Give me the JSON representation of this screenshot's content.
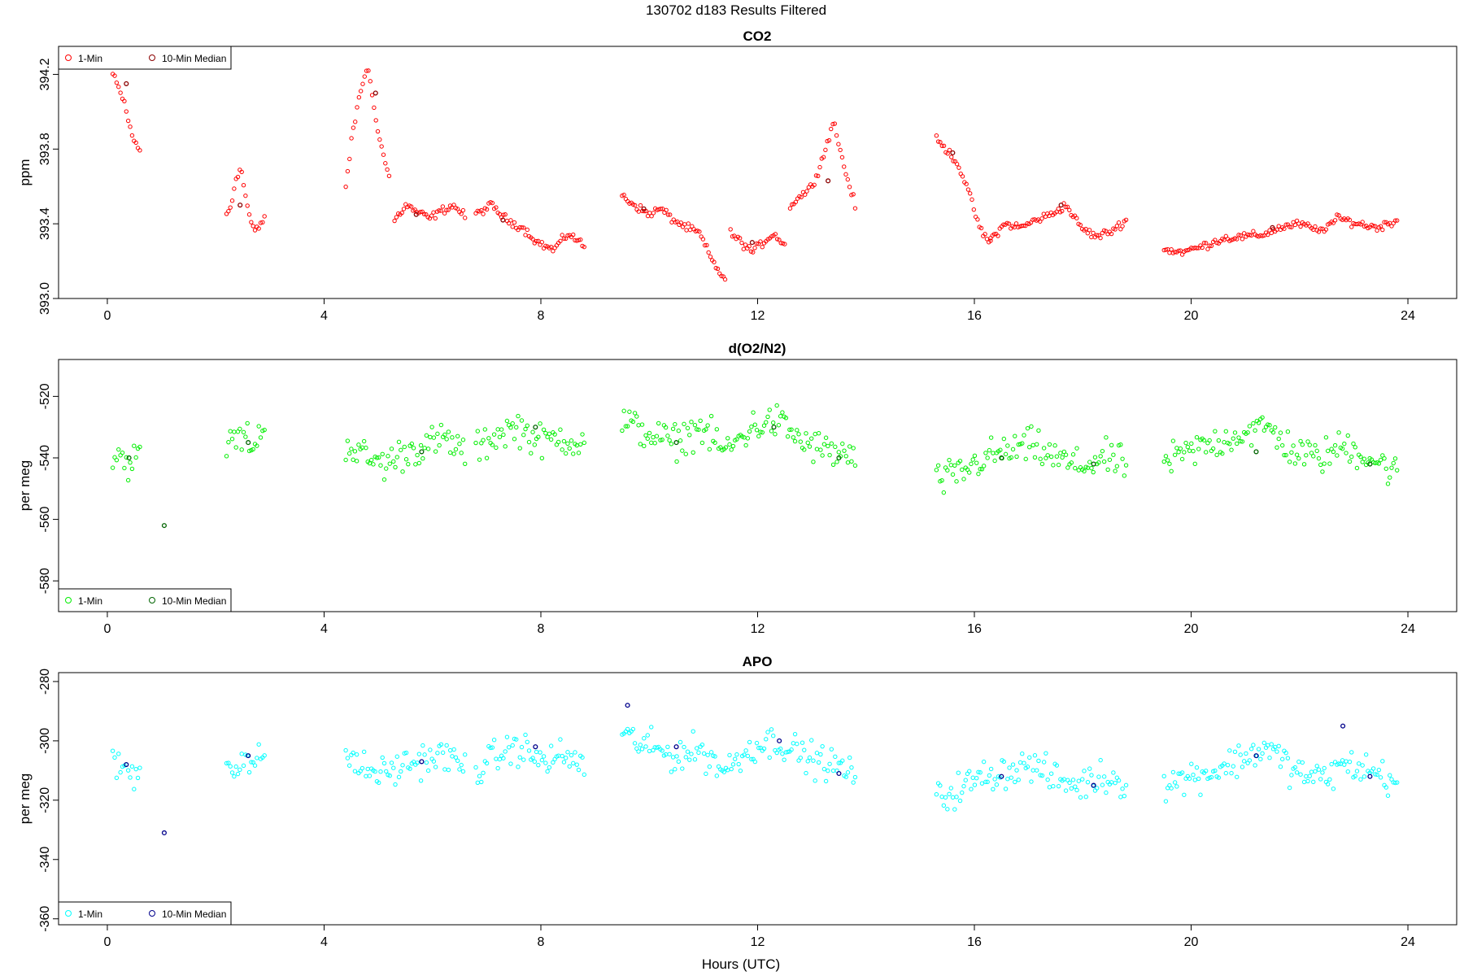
{
  "figure": {
    "title": "130702    d183    Results Filtered",
    "xlabel": "Hours (UTC)"
  },
  "legend": {
    "one_min": "1-Min",
    "ten_min": "10-Min Median"
  },
  "chart_data": [
    {
      "type": "scatter",
      "id": "co2",
      "title": "CO2",
      "xlabel": "",
      "ylabel": "ppm",
      "xlim": [
        -0.9,
        24.9
      ],
      "ylim": [
        393.0,
        394.35
      ],
      "xticks": [
        0,
        4,
        8,
        12,
        16,
        20,
        24
      ],
      "yticks": [
        393.0,
        393.4,
        393.8,
        394.2
      ],
      "ytick_labels": [
        "393.0",
        "393.4",
        "393.8",
        "394.2"
      ],
      "legend_position": "top-left",
      "grid": false,
      "color_1min": "#ff0000",
      "color_median": "#8b0000",
      "segments": [
        {
          "x0": 0.1,
          "x1": 0.6,
          "y": [
            394.2,
            394.15,
            394.1,
            394.05,
            393.95,
            393.88,
            393.82,
            393.79
          ]
        },
        {
          "x0": 2.2,
          "x1": 2.9,
          "y": [
            393.45,
            393.5,
            393.65,
            393.7,
            393.55,
            393.42,
            393.36,
            393.38,
            393.44
          ]
        },
        {
          "x0": 4.4,
          "x1": 5.2,
          "y": [
            393.6,
            393.9,
            394.1,
            394.25,
            394.0,
            393.8,
            393.65
          ]
        },
        {
          "x0": 5.3,
          "x1": 6.6,
          "y": [
            393.42,
            393.5,
            393.46,
            393.43,
            393.47,
            393.5,
            393.44
          ]
        },
        {
          "x0": 6.8,
          "x1": 8.8,
          "y": [
            393.45,
            393.5,
            393.42,
            393.38,
            393.3,
            393.26,
            393.35,
            393.28
          ]
        },
        {
          "x0": 9.5,
          "x1": 11.4,
          "y": [
            393.55,
            393.5,
            393.45,
            393.48,
            393.42,
            393.38,
            393.35,
            393.2,
            393.1
          ]
        },
        {
          "x0": 11.5,
          "x1": 12.5,
          "y": [
            393.35,
            393.3,
            393.25,
            393.3,
            393.35,
            393.28
          ]
        },
        {
          "x0": 12.6,
          "x1": 13.8,
          "y": [
            393.5,
            393.55,
            393.6,
            393.75,
            393.95,
            393.7,
            393.5
          ]
        },
        {
          "x0": 15.3,
          "x1": 16.3,
          "y": [
            393.85,
            393.8,
            393.75,
            393.65,
            393.5,
            393.35,
            393.3
          ]
        },
        {
          "x0": 16.3,
          "x1": 18.8,
          "y": [
            393.32,
            393.4,
            393.38,
            393.42,
            393.45,
            393.5,
            393.38,
            393.33,
            393.36,
            393.42
          ]
        },
        {
          "x0": 19.5,
          "x1": 23.8,
          "y": [
            393.26,
            393.25,
            393.28,
            393.32,
            393.33,
            393.34,
            393.38,
            393.4,
            393.36,
            393.43,
            393.4,
            393.38,
            393.42
          ]
        }
      ],
      "scatter": 0.03,
      "medians": [
        {
          "x": 0.35,
          "y": 394.15
        },
        {
          "x": 2.45,
          "y": 393.5
        },
        {
          "x": 4.95,
          "y": 394.1
        },
        {
          "x": 5.7,
          "y": 393.45
        },
        {
          "x": 7.3,
          "y": 393.42
        },
        {
          "x": 9.9,
          "y": 393.48
        },
        {
          "x": 11.9,
          "y": 393.3
        },
        {
          "x": 13.3,
          "y": 393.63
        },
        {
          "x": 15.6,
          "y": 393.78
        },
        {
          "x": 17.6,
          "y": 393.5
        },
        {
          "x": 21.5,
          "y": 393.38
        }
      ]
    },
    {
      "type": "scatter",
      "id": "o2n2",
      "title": "d(O2/N2)",
      "xlabel": "",
      "ylabel": "per meg",
      "xlim": [
        -0.9,
        24.9
      ],
      "ylim": [
        -590,
        -508
      ],
      "xticks": [
        0,
        4,
        8,
        12,
        16,
        20,
        24
      ],
      "yticks": [
        -580,
        -560,
        -540,
        -520
      ],
      "ytick_labels": [
        "-580",
        "-560",
        "-540",
        "-520"
      ],
      "legend_position": "bottom-left",
      "grid": false,
      "color_1min": "#00ee00",
      "color_median": "#006400",
      "segments": [
        {
          "x0": 0.1,
          "x1": 0.6,
          "y": [
            -540,
            -538,
            -542,
            -540,
            -541
          ]
        },
        {
          "x0": 2.2,
          "x1": 2.9,
          "y": [
            -535,
            -534,
            -533,
            -536,
            -530
          ]
        },
        {
          "x0": 4.4,
          "x1": 6.6,
          "y": [
            -535,
            -540,
            -542,
            -538,
            -536,
            -534,
            -538
          ]
        },
        {
          "x0": 6.8,
          "x1": 8.8,
          "y": [
            -538,
            -532,
            -530,
            -535,
            -533,
            -536
          ]
        },
        {
          "x0": 9.5,
          "x1": 13.8,
          "y": [
            -528,
            -532,
            -535,
            -530,
            -538,
            -530,
            -528,
            -535,
            -538,
            -540
          ]
        },
        {
          "x0": 15.3,
          "x1": 18.8,
          "y": [
            -548,
            -545,
            -540,
            -538,
            -536,
            -540,
            -543,
            -540,
            -542
          ]
        },
        {
          "x0": 19.5,
          "x1": 23.8,
          "y": [
            -542,
            -538,
            -535,
            -532,
            -530,
            -538,
            -540,
            -536,
            -540,
            -545
          ]
        }
      ],
      "scatter": 8,
      "medians": [
        {
          "x": 0.4,
          "y": -540
        },
        {
          "x": 1.05,
          "y": -562
        },
        {
          "x": 2.6,
          "y": -535
        },
        {
          "x": 5.8,
          "y": -538
        },
        {
          "x": 7.9,
          "y": -530
        },
        {
          "x": 10.5,
          "y": -535
        },
        {
          "x": 12.3,
          "y": -530
        },
        {
          "x": 13.5,
          "y": -540
        },
        {
          "x": 16.5,
          "y": -540
        },
        {
          "x": 18.2,
          "y": -542
        },
        {
          "x": 21.2,
          "y": -538
        },
        {
          "x": 23.3,
          "y": -542
        }
      ]
    },
    {
      "type": "scatter",
      "id": "apo",
      "title": "APO",
      "xlabel": "Hours (UTC)",
      "ylabel": "per meg",
      "xlim": [
        -0.9,
        24.9
      ],
      "ylim": [
        -362,
        -277
      ],
      "xticks": [
        0,
        4,
        8,
        12,
        16,
        20,
        24
      ],
      "yticks": [
        -360,
        -340,
        -320,
        -300,
        -280
      ],
      "ytick_labels": [
        "-360",
        "-340",
        "-320",
        "-300",
        "-280"
      ],
      "legend_position": "bottom-left",
      "grid": false,
      "color_1min": "#00ffff",
      "color_median": "#00008b",
      "segments": [
        {
          "x0": 0.1,
          "x1": 0.6,
          "y": [
            -306,
            -310,
            -308,
            -312,
            -310
          ]
        },
        {
          "x0": 2.2,
          "x1": 2.9,
          "y": [
            -307,
            -308,
            -305,
            -310,
            -302
          ]
        },
        {
          "x0": 4.4,
          "x1": 6.6,
          "y": [
            -305,
            -310,
            -311,
            -308,
            -306,
            -305,
            -309
          ]
        },
        {
          "x0": 6.8,
          "x1": 8.8,
          "y": [
            -310,
            -305,
            -302,
            -307,
            -305,
            -308
          ]
        },
        {
          "x0": 9.5,
          "x1": 13.8,
          "y": [
            -298,
            -302,
            -305,
            -303,
            -310,
            -302,
            -300,
            -305,
            -308,
            -311
          ]
        },
        {
          "x0": 15.3,
          "x1": 18.8,
          "y": [
            -320,
            -316,
            -312,
            -310,
            -308,
            -313,
            -315,
            -312,
            -314
          ]
        },
        {
          "x0": 19.5,
          "x1": 23.8,
          "y": [
            -315,
            -312,
            -310,
            -306,
            -302,
            -310,
            -313,
            -308,
            -310,
            -314
          ]
        }
      ],
      "scatter": 8,
      "medians": [
        {
          "x": 0.35,
          "y": -308
        },
        {
          "x": 1.05,
          "y": -331
        },
        {
          "x": 2.6,
          "y": -305
        },
        {
          "x": 5.8,
          "y": -307
        },
        {
          "x": 7.9,
          "y": -302
        },
        {
          "x": 9.6,
          "y": -288
        },
        {
          "x": 10.5,
          "y": -302
        },
        {
          "x": 12.4,
          "y": -300
        },
        {
          "x": 13.5,
          "y": -311
        },
        {
          "x": 16.5,
          "y": -312
        },
        {
          "x": 18.2,
          "y": -315
        },
        {
          "x": 21.2,
          "y": -305
        },
        {
          "x": 22.8,
          "y": -295
        },
        {
          "x": 23.3,
          "y": -312
        }
      ]
    }
  ]
}
